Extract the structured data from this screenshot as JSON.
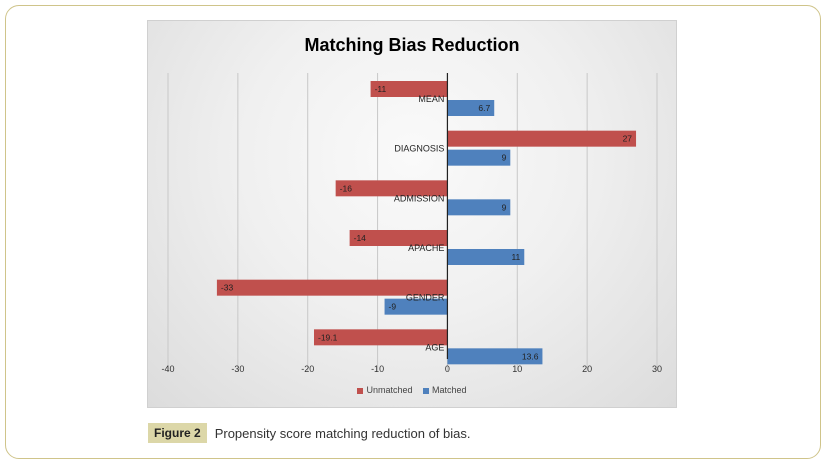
{
  "figure": {
    "label": "Figure 2",
    "caption": "Propensity score matching reduction of bias."
  },
  "colors": {
    "unmatched": "#c0504d",
    "matched": "#4f81bd"
  },
  "chart_data": {
    "type": "bar",
    "orientation": "horizontal",
    "title": "Matching Bias Reduction",
    "categories": [
      "MEAN",
      "DIAGNOSIS",
      "ADMISSION",
      "APACHE",
      "GENDER",
      "AGE"
    ],
    "series": [
      {
        "name": "Unmatched",
        "values": [
          -11,
          27,
          -16,
          -14,
          -33,
          -19.1
        ],
        "labels": [
          "-11",
          "27",
          "-16",
          "-14",
          "-33",
          "-19.1"
        ]
      },
      {
        "name": "Matched",
        "values": [
          6.7,
          9,
          9,
          11,
          -9,
          13.6
        ],
        "labels": [
          "6.7",
          "9",
          "9",
          "11",
          "-9",
          "13.6"
        ]
      }
    ],
    "xlim": [
      -40,
      30
    ],
    "xticks": [
      "-40",
      "-30",
      "-20",
      "-10",
      "0",
      "10",
      "20",
      "30"
    ],
    "grid": true,
    "legend_position": "bottom"
  }
}
